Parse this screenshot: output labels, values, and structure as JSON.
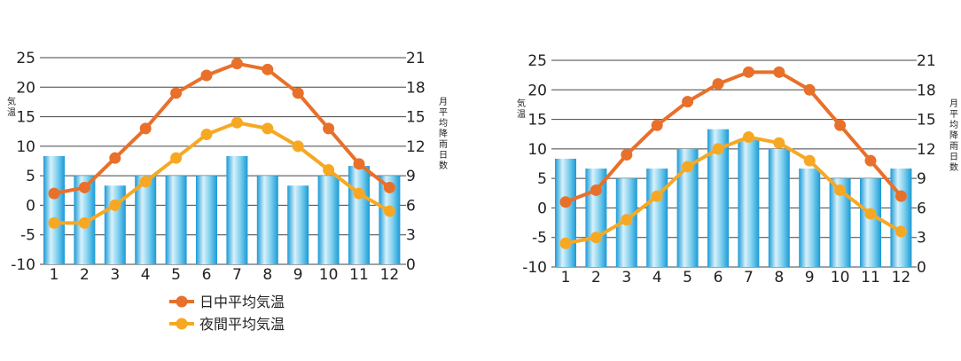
{
  "chart_data": [
    {
      "type": "bar+line",
      "categories": [
        "1",
        "2",
        "3",
        "4",
        "5",
        "6",
        "7",
        "8",
        "9",
        "10",
        "11",
        "12"
      ],
      "left_axis": {
        "label": "気温",
        "ylim": [
          -10,
          25
        ],
        "ticks": [
          "25",
          "20",
          "15",
          "10",
          "5",
          "0",
          "-5",
          "-10"
        ]
      },
      "right_axis": {
        "label": "月平均降雨日数",
        "ylim": [
          0,
          21
        ],
        "ticks": [
          "21",
          "18",
          "15",
          "12",
          "9",
          "6",
          "3",
          "0"
        ]
      },
      "bars": {
        "axis": "right",
        "values": [
          11,
          9,
          8,
          9,
          9,
          9,
          11,
          9,
          8,
          9,
          10,
          9
        ]
      },
      "series": [
        {
          "name": "日中平均気温",
          "color": "#e8702a",
          "values": [
            2,
            3,
            8,
            13,
            19,
            22,
            24,
            23,
            19,
            13,
            7,
            3
          ]
        },
        {
          "name": "夜間平均気温",
          "color": "#f7a823",
          "values": [
            -3,
            -3,
            0,
            4,
            8,
            12,
            14,
            13,
            10,
            6,
            2,
            -1
          ]
        }
      ],
      "legend": {
        "position": "bottom"
      }
    },
    {
      "type": "bar+line",
      "categories": [
        "1",
        "2",
        "3",
        "4",
        "5",
        "6",
        "7",
        "8",
        "9",
        "10",
        "11",
        "12"
      ],
      "left_axis": {
        "label": "気温",
        "ylim": [
          -10,
          25
        ],
        "ticks": [
          "25",
          "20",
          "15",
          "10",
          "5",
          "0",
          "-5",
          "-10"
        ]
      },
      "right_axis": {
        "label": "月平均降雨日数",
        "ylim": [
          0,
          21
        ],
        "ticks": [
          "21",
          "18",
          "15",
          "12",
          "9",
          "6",
          "3",
          "0"
        ]
      },
      "bars": {
        "axis": "right",
        "values": [
          11,
          10,
          9,
          10,
          12,
          14,
          13,
          12,
          10,
          9,
          9,
          10
        ]
      },
      "series": [
        {
          "name": "日中平均気温",
          "color": "#e8702a",
          "values": [
            1,
            3,
            9,
            14,
            18,
            21,
            23,
            23,
            20,
            14,
            8,
            2
          ]
        },
        {
          "name": "夜間平均気温",
          "color": "#f7a823",
          "values": [
            -6,
            -5,
            -2,
            2,
            7,
            10,
            12,
            11,
            8,
            3,
            -1,
            -4
          ]
        }
      ]
    }
  ]
}
